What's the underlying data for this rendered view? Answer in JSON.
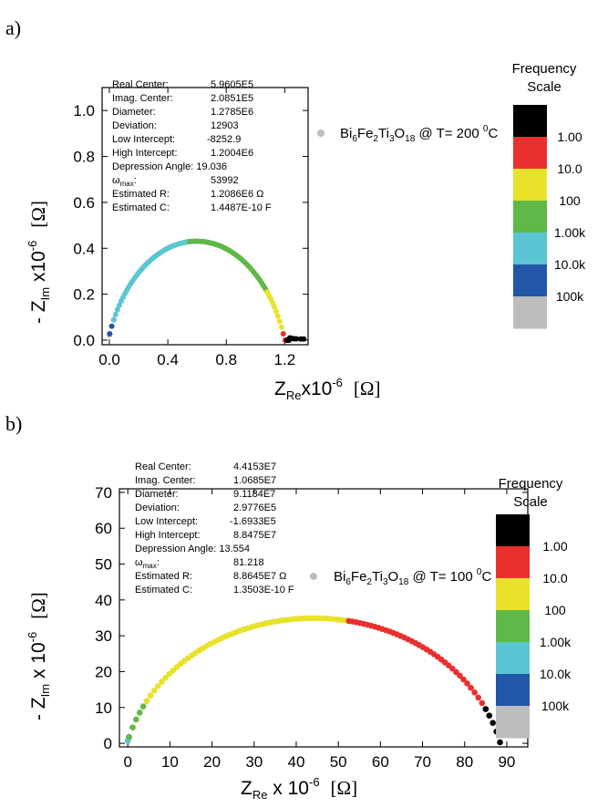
{
  "colors": {
    "black": "#000000",
    "red": "#e8312f",
    "yellow": "#e8e22a",
    "green": "#5fb847",
    "cyan": "#5bc5d3",
    "blue": "#2256a6",
    "gray": "#bdbdbd"
  },
  "chart_data": [
    {
      "type": "scatter",
      "panel_label": "a)",
      "xlabel": {
        "main": "Z",
        "sub": "Re",
        "rest": "x10",
        "sup": "-6",
        "unit": "[Ω]"
      },
      "ylabel": {
        "pre": "- Z",
        "sub": "Im",
        "rest": " x10",
        "sup": "-6",
        "unit": "[Ω]"
      },
      "xlim": [
        -0.05,
        1.36
      ],
      "ylim": [
        -0.02,
        1.1
      ],
      "xticks": [
        "0.0",
        "0.4",
        "0.8",
        "1.2"
      ],
      "xtick_values": [
        0,
        0.4,
        0.8,
        1.2
      ],
      "yticks": [
        "0.0",
        "0.2",
        "0.4",
        "0.6",
        "0.8",
        "1.0"
      ],
      "ytick_values": [
        0,
        0.2,
        0.4,
        0.6,
        0.8,
        1.0
      ],
      "legend": {
        "pre": "Bi",
        "s1": "6",
        "m1": "Fe",
        "s2": "2",
        "m2": "Ti",
        "s3": "3",
        "m3": "O",
        "s4": "18",
        "post": " @ T= 200 ",
        "sup": "0",
        "unit": "C"
      },
      "fit_results": [
        {
          "label": "Real Center:",
          "value": "5.9605E5"
        },
        {
          "label": "Imag. Center:",
          "value": "2.0851E5"
        },
        {
          "label": "Diameter:",
          "value": "1.2785E6"
        },
        {
          "label": "Deviation:",
          "value": "12903"
        },
        {
          "label": "Low Intercept:",
          "value": "-8252.9"
        },
        {
          "label": "High Intercept:",
          "value": "1.2004E6"
        },
        {
          "label": "Depression Angle: 19.036",
          "value": ""
        },
        {
          "label": "ω",
          "label_sub": "max",
          "label_rest": ":",
          "value": "53992"
        },
        {
          "label": "Estimated R:",
          "value": "1.2086E6 Ω"
        },
        {
          "label": "Estimated C:",
          "value": "1.4487E-10 F"
        }
      ],
      "arc": {
        "center_x": 0.596,
        "center_y": 0.2085,
        "radius": 0.6393,
        "depressed_center_y": -0.2085
      },
      "series": [
        {
          "color": "gray",
          "x_from": 0.0,
          "x_to": 0.002
        },
        {
          "color": "blue",
          "x_from": 0.002,
          "x_to": 0.03
        },
        {
          "color": "cyan",
          "x_from": 0.03,
          "x_to": 0.55
        },
        {
          "color": "green",
          "x_from": 0.55,
          "x_to": 1.08
        },
        {
          "color": "yellow",
          "x_from": 1.08,
          "x_to": 1.19
        },
        {
          "color": "red",
          "x_from": 1.19,
          "x_to": 1.215
        },
        {
          "color": "black",
          "x_from": 1.215,
          "x_to": 1.23
        }
      ],
      "tail_points": [
        [
          1.235,
          0.01
        ],
        [
          1.25,
          0.008
        ],
        [
          1.265,
          0.006
        ],
        [
          1.28,
          0.006
        ],
        [
          1.31,
          0.005
        ],
        [
          1.33,
          0.005
        ]
      ],
      "scale": {
        "title_line1": "Frequency",
        "title_line2": "Scale",
        "labels": [
          "1.00",
          "10.0",
          "100",
          "1.00k",
          "10.0k",
          "100k"
        ]
      }
    },
    {
      "type": "scatter",
      "panel_label": "b)",
      "xlabel": {
        "main": "Z",
        "sub": "Re",
        "rest": " x 10",
        "sup": "-6",
        "unit": "[Ω]"
      },
      "ylabel": {
        "pre": "- Z",
        "sub": "Im",
        "rest": " x 10",
        "sup": "-6",
        "unit": "[Ω]"
      },
      "xlim": [
        -2,
        95
      ],
      "ylim": [
        -1,
        71
      ],
      "xticks": [
        "0",
        "10",
        "20",
        "30",
        "40",
        "50",
        "60",
        "70",
        "80",
        "90"
      ],
      "xtick_values": [
        0,
        10,
        20,
        30,
        40,
        50,
        60,
        70,
        80,
        90
      ],
      "yticks": [
        "0",
        "10",
        "20",
        "30",
        "40",
        "50",
        "60",
        "70"
      ],
      "ytick_values": [
        0,
        10,
        20,
        30,
        40,
        50,
        60,
        70
      ],
      "legend": {
        "pre": "Bi",
        "s1": "6",
        "m1": "Fe",
        "s2": "2",
        "m2": "Ti",
        "s3": "3",
        "m3": "O",
        "s4": "18",
        "post": " @ T= 100 ",
        "sup": "0",
        "unit": "C"
      },
      "fit_results": [
        {
          "label": "Real Center:",
          "value": "4.4153E7"
        },
        {
          "label": "Imag. Center:",
          "value": "1.0685E7"
        },
        {
          "label": "Diameter:",
          "value": "9.1184E7"
        },
        {
          "label": "Deviation:",
          "value": "2.9776E5"
        },
        {
          "label": "Low Intercept:",
          "value": "-1.6933E5"
        },
        {
          "label": "High Intercept:",
          "value": "8.8475E7"
        },
        {
          "label": "Depression Angle: 13.554",
          "value": ""
        },
        {
          "label": "ω",
          "label_sub": "max",
          "label_rest": ":",
          "value": "81.218"
        },
        {
          "label": "Estimated R:",
          "value": "8.8645E7 Ω"
        },
        {
          "label": "Estimated C:",
          "value": "1.3503E-10 F"
        }
      ],
      "arc": {
        "center_x": 44.15,
        "center_y": 10.685,
        "radius": 45.59,
        "depressed_center_y": -10.685
      },
      "series": [
        {
          "color": "cyan",
          "x_from": 0.0,
          "x_to": 0.3
        },
        {
          "color": "green",
          "x_from": 0.3,
          "x_to": 4.5
        },
        {
          "color": "yellow",
          "x_from": 4.5,
          "x_to": 52.5
        },
        {
          "color": "red",
          "x_from": 52.5,
          "x_to": 85.0
        },
        {
          "color": "black",
          "x_from": 85.0,
          "x_to": 88.4
        }
      ],
      "tail_points": [],
      "scale": {
        "title_line1": "Frequency",
        "title_line2": "Scale",
        "labels": [
          "1.00",
          "10.0",
          "100",
          "1.00k",
          "10.0k",
          "100k"
        ]
      }
    }
  ]
}
